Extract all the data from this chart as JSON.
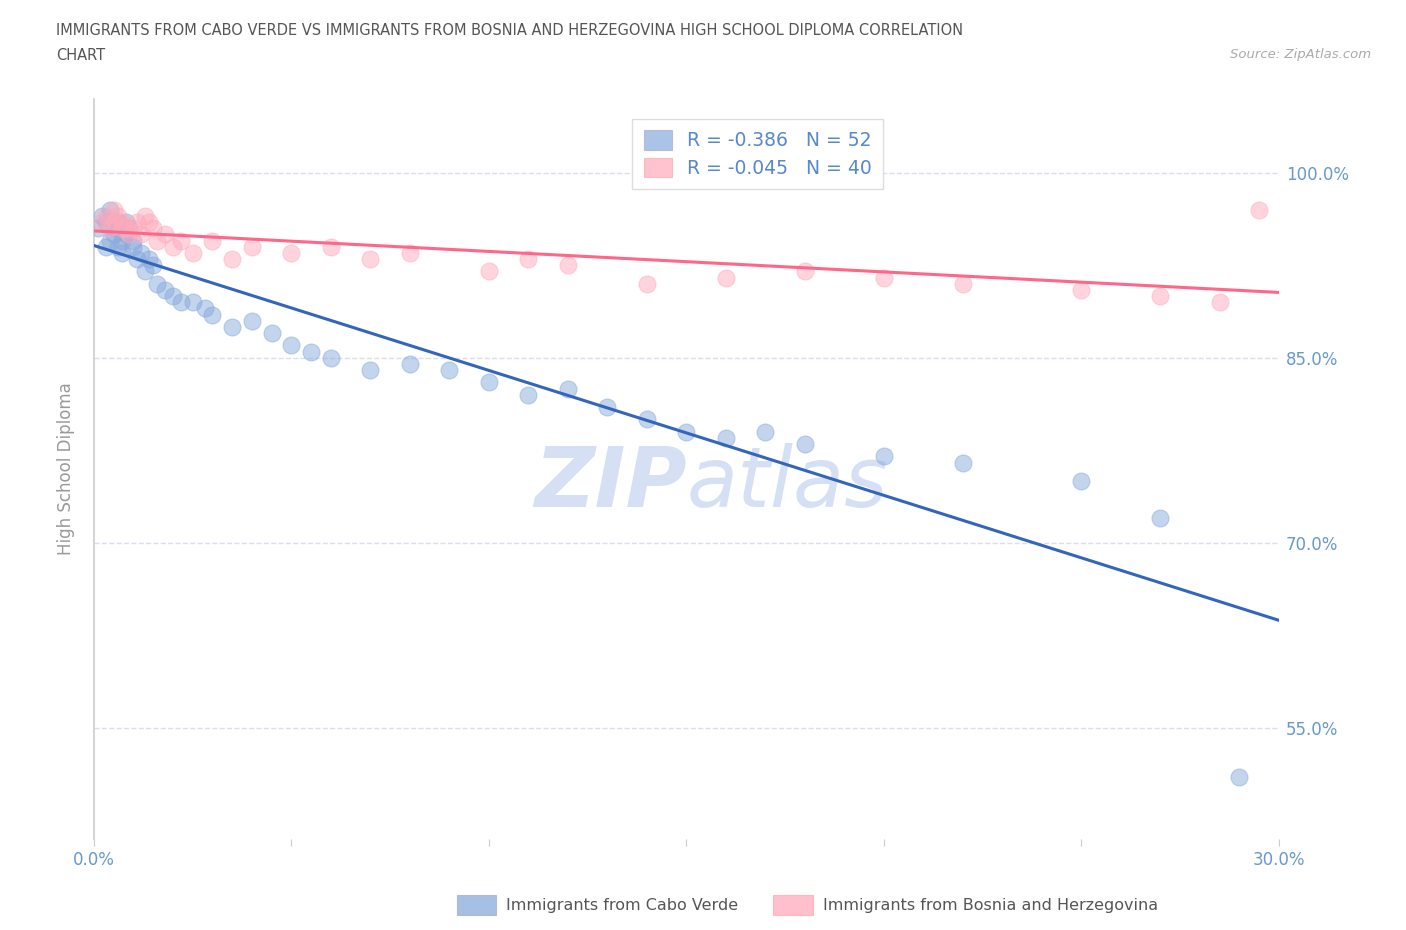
{
  "title_line1": "IMMIGRANTS FROM CABO VERDE VS IMMIGRANTS FROM BOSNIA AND HERZEGOVINA HIGH SCHOOL DIPLOMA CORRELATION",
  "title_line2": "CHART",
  "source_text": "Source: ZipAtlas.com",
  "ylabel": "High School Diploma",
  "xlim": [
    0.0,
    0.3
  ],
  "ylim": [
    0.46,
    1.06
  ],
  "ytick_labels": [
    "55.0%",
    "70.0%",
    "85.0%",
    "100.0%"
  ],
  "ytick_values": [
    0.55,
    0.7,
    0.85,
    1.0
  ],
  "xtick_values": [
    0.0,
    0.05,
    0.1,
    0.15,
    0.2,
    0.25,
    0.3
  ],
  "xtick_labels_sparse": {
    "0": "0.0%",
    "3": "30.0%"
  },
  "cabo_verde_x": [
    0.001,
    0.002,
    0.003,
    0.003,
    0.004,
    0.004,
    0.005,
    0.005,
    0.006,
    0.006,
    0.007,
    0.007,
    0.008,
    0.008,
    0.009,
    0.01,
    0.01,
    0.011,
    0.012,
    0.013,
    0.014,
    0.015,
    0.016,
    0.018,
    0.02,
    0.022,
    0.025,
    0.028,
    0.03,
    0.035,
    0.04,
    0.045,
    0.05,
    0.055,
    0.06,
    0.07,
    0.08,
    0.09,
    0.1,
    0.11,
    0.12,
    0.13,
    0.14,
    0.15,
    0.16,
    0.17,
    0.18,
    0.2,
    0.22,
    0.25,
    0.27,
    0.29
  ],
  "cabo_verde_y": [
    0.955,
    0.965,
    0.94,
    0.96,
    0.945,
    0.97,
    0.95,
    0.955,
    0.96,
    0.94,
    0.945,
    0.935,
    0.96,
    0.95,
    0.955,
    0.945,
    0.94,
    0.93,
    0.935,
    0.92,
    0.93,
    0.925,
    0.91,
    0.905,
    0.9,
    0.895,
    0.895,
    0.89,
    0.885,
    0.875,
    0.88,
    0.87,
    0.86,
    0.855,
    0.85,
    0.84,
    0.845,
    0.84,
    0.83,
    0.82,
    0.825,
    0.81,
    0.8,
    0.79,
    0.785,
    0.79,
    0.78,
    0.77,
    0.765,
    0.75,
    0.72,
    0.51
  ],
  "bosnia_x": [
    0.002,
    0.003,
    0.004,
    0.005,
    0.005,
    0.006,
    0.007,
    0.007,
    0.008,
    0.009,
    0.01,
    0.011,
    0.012,
    0.013,
    0.014,
    0.015,
    0.016,
    0.018,
    0.02,
    0.022,
    0.025,
    0.03,
    0.035,
    0.04,
    0.05,
    0.06,
    0.07,
    0.08,
    0.1,
    0.11,
    0.12,
    0.14,
    0.16,
    0.18,
    0.2,
    0.22,
    0.25,
    0.27,
    0.285,
    0.295
  ],
  "bosnia_y": [
    0.96,
    0.965,
    0.955,
    0.97,
    0.96,
    0.965,
    0.955,
    0.96,
    0.955,
    0.95,
    0.955,
    0.96,
    0.95,
    0.965,
    0.96,
    0.955,
    0.945,
    0.95,
    0.94,
    0.945,
    0.935,
    0.945,
    0.93,
    0.94,
    0.935,
    0.94,
    0.93,
    0.935,
    0.92,
    0.93,
    0.925,
    0.91,
    0.915,
    0.92,
    0.915,
    0.91,
    0.905,
    0.9,
    0.895,
    0.97
  ],
  "cabo_verde_color": "#88aadd",
  "bosnia_color": "#ffaabb",
  "cabo_verde_line_color": "#3366bb",
  "bosnia_line_color": "#ff6688",
  "legend_r_cabo": "R = -0.386",
  "legend_n_cabo": "N = 52",
  "legend_r_bosnia": "R = -0.045",
  "legend_n_bosnia": "N = 40",
  "watermark_text1": "ZIP",
  "watermark_text2": "atlas",
  "watermark_color": "#bbccee",
  "background_color": "#ffffff",
  "grid_color": "#ddddee",
  "tick_label_color": "#6699cc",
  "axis_color": "#cccccc",
  "title_color": "#555555",
  "ylabel_color": "#999999",
  "legend_text_color": "#5588cc"
}
